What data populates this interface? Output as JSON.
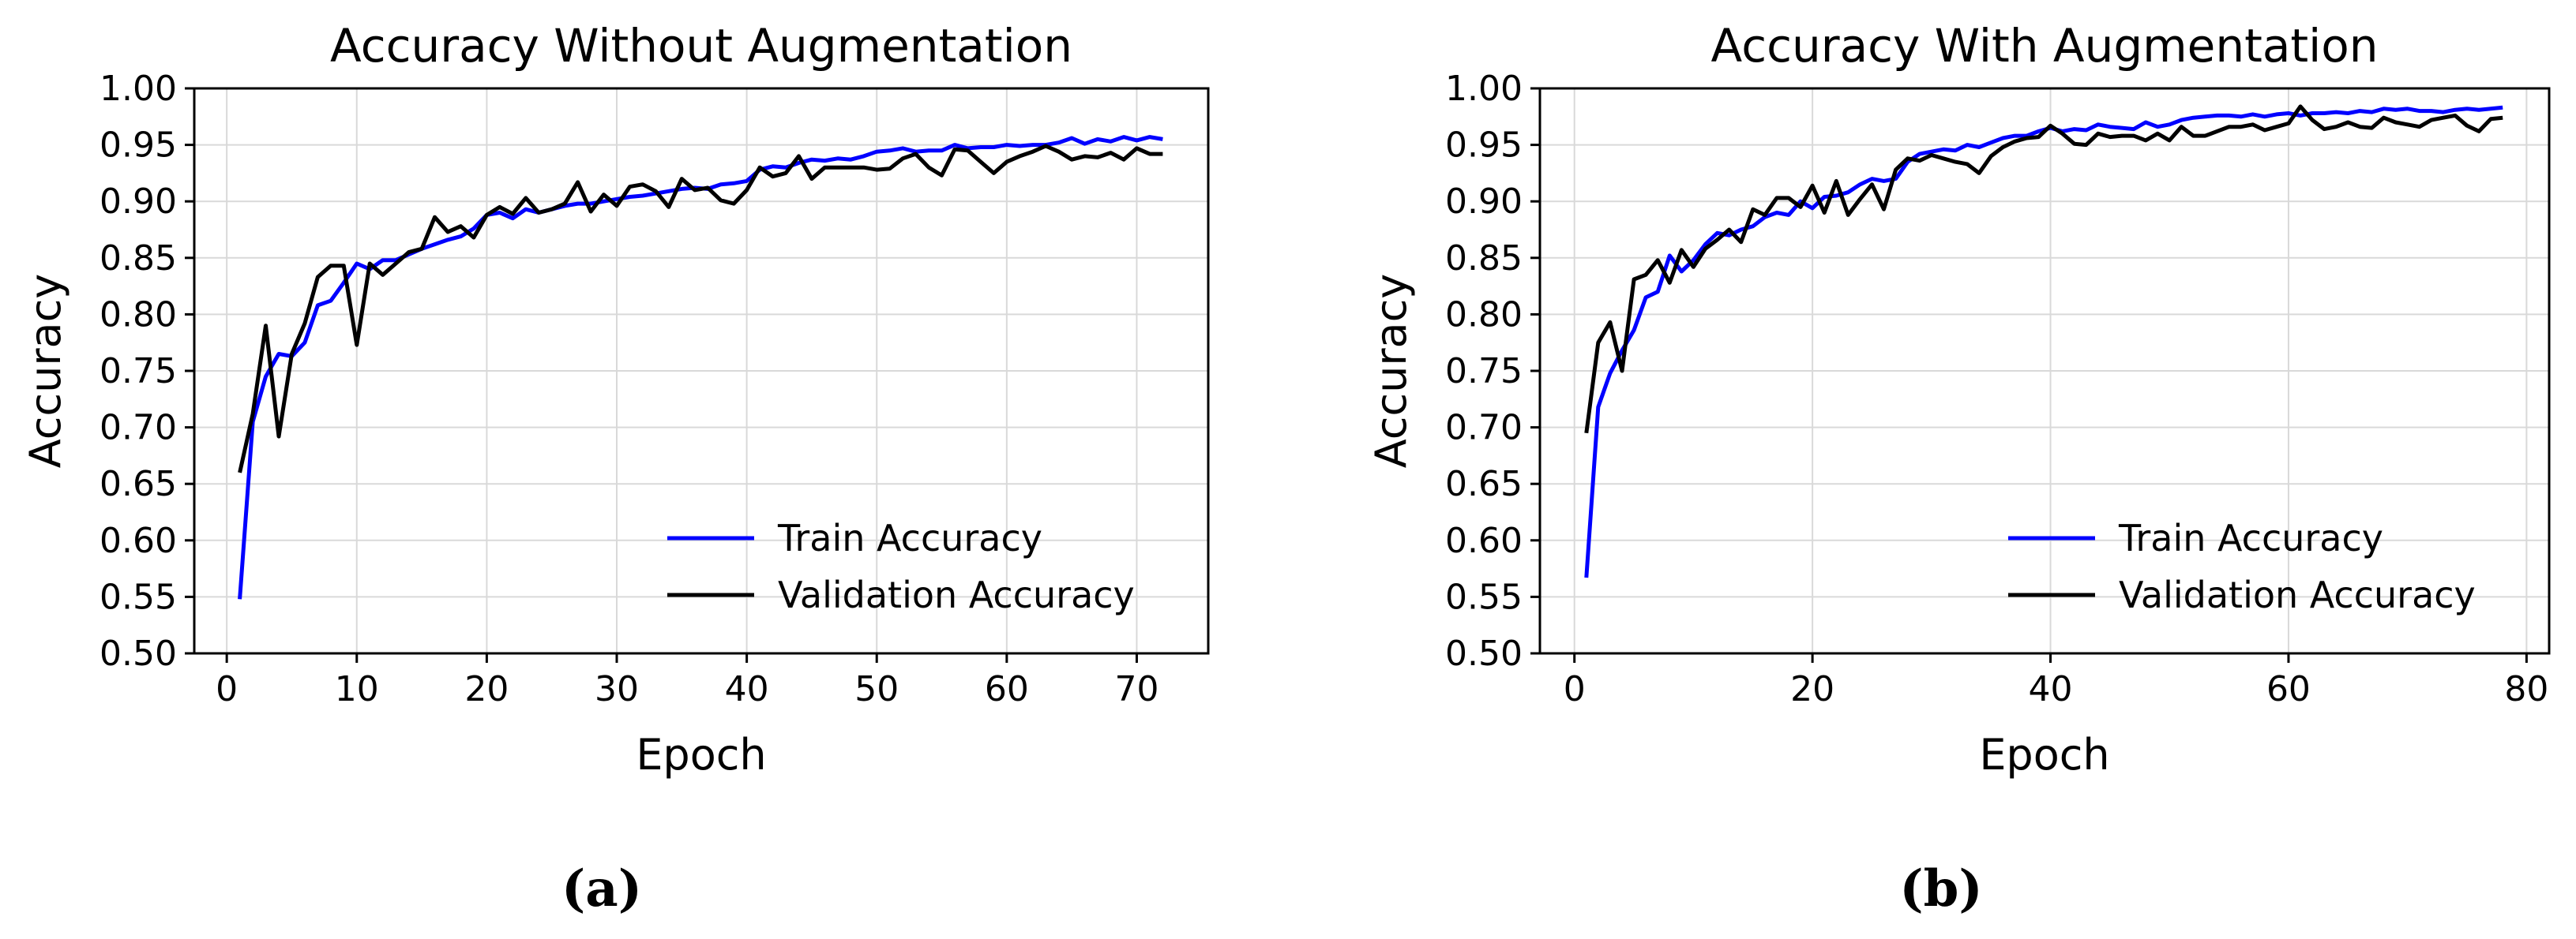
{
  "chart_data": [
    {
      "type": "line",
      "title": "Accuracy Without Augmentation",
      "xlabel": "Epoch",
      "ylabel": "Accuracy",
      "xlim": [
        -2.5,
        75.5
      ],
      "ylim": [
        0.5,
        1.0
      ],
      "xticks": [
        "0",
        "10",
        "20",
        "30",
        "40",
        "50",
        "60",
        "70"
      ],
      "yticks": [
        "0.50",
        "0.55",
        "0.60",
        "0.65",
        "0.70",
        "0.75",
        "0.80",
        "0.85",
        "0.90",
        "0.95",
        "1.00"
      ],
      "grid": true,
      "legend": "lower-right",
      "caption": "(a)",
      "x": [
        1,
        2,
        3,
        4,
        5,
        6,
        7,
        8,
        9,
        10,
        11,
        12,
        13,
        14,
        15,
        16,
        17,
        18,
        19,
        20,
        21,
        22,
        23,
        24,
        25,
        26,
        27,
        28,
        29,
        30,
        31,
        32,
        33,
        34,
        35,
        36,
        37,
        38,
        39,
        40,
        41,
        42,
        43,
        44,
        45,
        46,
        47,
        48,
        49,
        50,
        51,
        52,
        53,
        54,
        55,
        56,
        57,
        58,
        59,
        60,
        61,
        62,
        63,
        64,
        65,
        66,
        67,
        68,
        69,
        70,
        71,
        72
      ],
      "series": [
        {
          "name": "Train Accuracy",
          "color": "#0000ff",
          "values": [
            0.548,
            0.705,
            0.745,
            0.765,
            0.763,
            0.775,
            0.808,
            0.812,
            0.828,
            0.845,
            0.84,
            0.848,
            0.848,
            0.853,
            0.858,
            0.862,
            0.866,
            0.869,
            0.876,
            0.888,
            0.89,
            0.885,
            0.893,
            0.89,
            0.893,
            0.896,
            0.898,
            0.898,
            0.9,
            0.902,
            0.904,
            0.905,
            0.907,
            0.909,
            0.911,
            0.912,
            0.911,
            0.915,
            0.916,
            0.918,
            0.928,
            0.931,
            0.93,
            0.934,
            0.937,
            0.936,
            0.938,
            0.937,
            0.94,
            0.944,
            0.945,
            0.947,
            0.944,
            0.945,
            0.945,
            0.95,
            0.947,
            0.948,
            0.948,
            0.95,
            0.949,
            0.95,
            0.95,
            0.952,
            0.956,
            0.951,
            0.955,
            0.953,
            0.957,
            0.954,
            0.957,
            0.955
          ]
        },
        {
          "name": "Validation Accuracy",
          "color": "#000000",
          "values": [
            0.66,
            0.712,
            0.79,
            0.692,
            0.765,
            0.792,
            0.833,
            0.843,
            0.843,
            0.773,
            0.845,
            0.835,
            0.845,
            0.855,
            0.858,
            0.886,
            0.873,
            0.878,
            0.868,
            0.888,
            0.895,
            0.889,
            0.903,
            0.89,
            0.893,
            0.898,
            0.917,
            0.891,
            0.906,
            0.896,
            0.913,
            0.915,
            0.909,
            0.895,
            0.92,
            0.91,
            0.912,
            0.901,
            0.898,
            0.91,
            0.93,
            0.922,
            0.925,
            0.94,
            0.92,
            0.93,
            0.93,
            0.93,
            0.93,
            0.928,
            0.929,
            0.938,
            0.942,
            0.93,
            0.923,
            0.946,
            0.945,
            0.935,
            0.925,
            0.935,
            0.94,
            0.944,
            0.949,
            0.944,
            0.937,
            0.94,
            0.939,
            0.943,
            0.937,
            0.947,
            0.942,
            0.942
          ]
        }
      ]
    },
    {
      "type": "line",
      "title": "Accuracy With Augmentation",
      "xlabel": "Epoch",
      "ylabel": "Accuracy",
      "xlim": [
        -2.9,
        81.9
      ],
      "ylim": [
        0.5,
        1.0
      ],
      "xticks": [
        "0",
        "20",
        "40",
        "60",
        "80"
      ],
      "yticks": [
        "0.50",
        "0.55",
        "0.60",
        "0.65",
        "0.70",
        "0.75",
        "0.80",
        "0.85",
        "0.90",
        "0.95",
        "1.00"
      ],
      "grid": true,
      "legend": "lower-right",
      "caption": "(b)",
      "x": [
        1,
        2,
        3,
        4,
        5,
        6,
        7,
        8,
        9,
        10,
        11,
        12,
        13,
        14,
        15,
        16,
        17,
        18,
        19,
        20,
        21,
        22,
        23,
        24,
        25,
        26,
        27,
        28,
        29,
        30,
        31,
        32,
        33,
        34,
        35,
        36,
        37,
        38,
        39,
        40,
        41,
        42,
        43,
        44,
        45,
        46,
        47,
        48,
        49,
        50,
        51,
        52,
        53,
        54,
        55,
        56,
        57,
        58,
        59,
        60,
        61,
        62,
        63,
        64,
        65,
        66,
        67,
        68,
        69,
        70,
        71,
        72,
        73,
        74,
        75,
        76,
        77,
        78
      ],
      "series": [
        {
          "name": "Train Accuracy",
          "color": "#0000ff",
          "values": [
            0.567,
            0.718,
            0.748,
            0.768,
            0.786,
            0.815,
            0.82,
            0.852,
            0.838,
            0.848,
            0.862,
            0.872,
            0.87,
            0.875,
            0.878,
            0.886,
            0.89,
            0.888,
            0.9,
            0.894,
            0.904,
            0.905,
            0.908,
            0.915,
            0.92,
            0.918,
            0.92,
            0.935,
            0.942,
            0.944,
            0.946,
            0.945,
            0.95,
            0.948,
            0.952,
            0.956,
            0.958,
            0.958,
            0.962,
            0.965,
            0.962,
            0.964,
            0.963,
            0.968,
            0.966,
            0.965,
            0.964,
            0.97,
            0.966,
            0.968,
            0.972,
            0.974,
            0.975,
            0.976,
            0.976,
            0.975,
            0.977,
            0.975,
            0.977,
            0.978,
            0.976,
            0.978,
            0.978,
            0.979,
            0.978,
            0.98,
            0.979,
            0.982,
            0.981,
            0.982,
            0.98,
            0.98,
            0.979,
            0.981,
            0.982,
            0.981,
            0.982,
            0.983
          ]
        },
        {
          "name": "Validation Accuracy",
          "color": "#000000",
          "values": [
            0.695,
            0.775,
            0.793,
            0.75,
            0.831,
            0.835,
            0.848,
            0.828,
            0.857,
            0.842,
            0.858,
            0.866,
            0.875,
            0.864,
            0.893,
            0.888,
            0.903,
            0.903,
            0.895,
            0.914,
            0.89,
            0.918,
            0.888,
            0.902,
            0.915,
            0.893,
            0.928,
            0.938,
            0.936,
            0.941,
            0.938,
            0.935,
            0.933,
            0.925,
            0.94,
            0.948,
            0.953,
            0.956,
            0.957,
            0.967,
            0.96,
            0.951,
            0.95,
            0.96,
            0.957,
            0.958,
            0.958,
            0.954,
            0.96,
            0.954,
            0.966,
            0.958,
            0.958,
            0.962,
            0.966,
            0.966,
            0.968,
            0.963,
            0.966,
            0.969,
            0.984,
            0.972,
            0.964,
            0.966,
            0.97,
            0.966,
            0.965,
            0.974,
            0.97,
            0.968,
            0.966,
            0.972,
            0.974,
            0.976,
            0.967,
            0.962,
            0.973,
            0.974
          ]
        }
      ]
    }
  ]
}
